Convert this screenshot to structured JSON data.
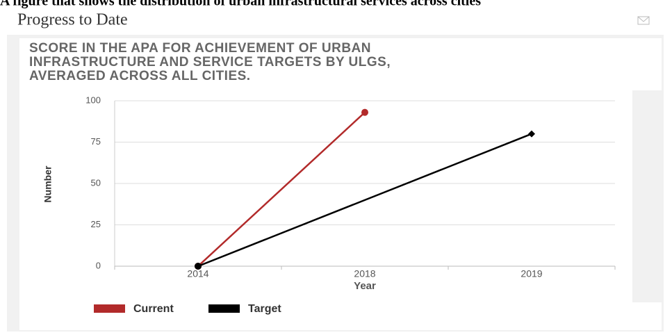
{
  "caption": "A figure that shows the distribution of urban infrastructural services across cities",
  "header": {
    "title": "Progress to Date"
  },
  "chart_data": {
    "type": "line",
    "title": "SCORE IN THE APA FOR ACHIEVEMENT OF URBAN INFRASTRUCTURE AND SERVICE TARGETS BY ULGS, AVERAGED ACROSS ALL CITIES.",
    "categories": [
      "2014",
      "2018",
      "2019"
    ],
    "x_label": "Year",
    "y_label": "Number",
    "ylim": [
      0,
      100
    ],
    "yticks": [
      0,
      25,
      50,
      75,
      100
    ],
    "grid": true,
    "series": [
      {
        "name": "Current",
        "color": "#b22a2a",
        "x": [
          "2014",
          "2018"
        ],
        "values": [
          0,
          93
        ]
      },
      {
        "name": "Target",
        "color": "#000000",
        "x": [
          "2014",
          "2019"
        ],
        "values": [
          0,
          80
        ]
      }
    ]
  }
}
